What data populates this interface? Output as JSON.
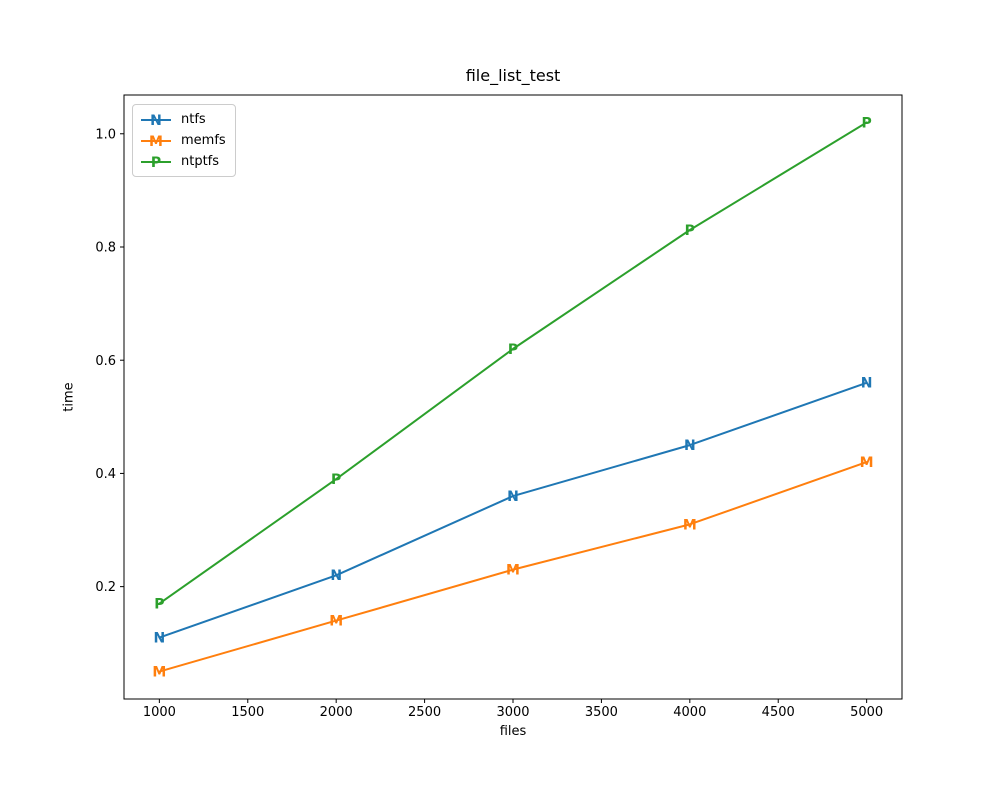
{
  "chart_data": {
    "type": "line",
    "title": "file_list_test",
    "xlabel": "files",
    "ylabel": "time",
    "x": [
      1000,
      2000,
      3000,
      4000,
      5000
    ],
    "series": [
      {
        "name": "ntfs",
        "color": "#1f77b4",
        "marker": "N",
        "values": [
          0.11,
          0.22,
          0.36,
          0.45,
          0.56
        ]
      },
      {
        "name": "memfs",
        "color": "#ff7f0e",
        "marker": "M",
        "values": [
          0.05,
          0.14,
          0.23,
          0.31,
          0.42
        ]
      },
      {
        "name": "ntptfs",
        "color": "#2ca02c",
        "marker": "P",
        "values": [
          0.17,
          0.39,
          0.62,
          0.83,
          1.02
        ]
      }
    ],
    "xlim": [
      800,
      5200
    ],
    "ylim": [
      0.0015,
      1.0685
    ],
    "xticks": [
      1000,
      1500,
      2000,
      2500,
      3000,
      3500,
      4000,
      4500,
      5000
    ],
    "yticks": [
      0.2,
      0.4,
      0.6,
      0.8,
      1.0
    ],
    "grid": false,
    "legend_position": "upper-left",
    "axis_color": "#000000",
    "legend_border_color": "#cccccc",
    "background": "#ffffff"
  }
}
